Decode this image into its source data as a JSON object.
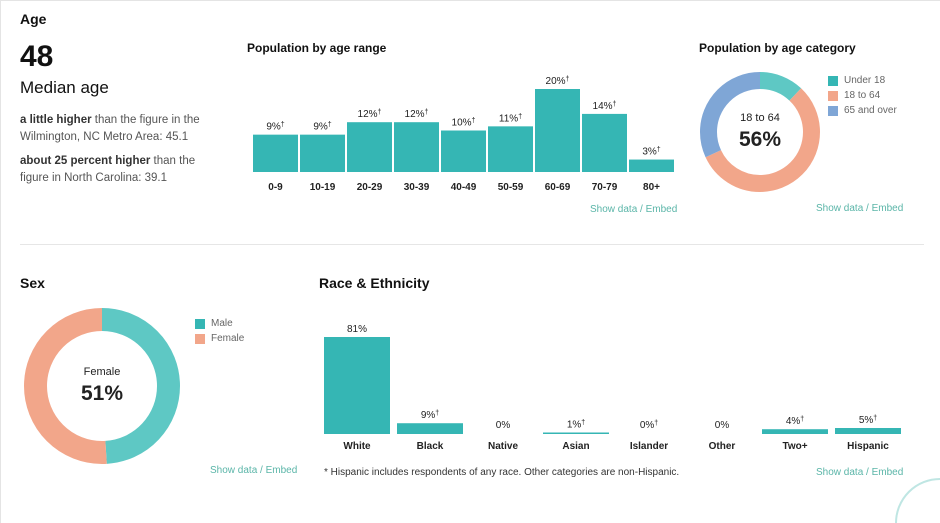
{
  "age": {
    "section_title": "Age",
    "median_value": "48",
    "median_label": "Median age",
    "comparisons": [
      {
        "bold": "a little higher",
        "rest": " than the figure in the Wilmington, NC Metro Area: 45.1"
      },
      {
        "bold": "about 25 percent higher",
        "rest": " than the figure in North Carolina: 39.1"
      }
    ]
  },
  "age_range": {
    "title": "Population by age range",
    "links": {
      "show": "Show data",
      "sep": "/",
      "embed": "Embed"
    }
  },
  "age_category": {
    "title": "Population by age category",
    "center_label": "18 to 64",
    "center_value": "56%",
    "legend": [
      "Under 18",
      "18 to 64",
      "65 and over"
    ],
    "links": {
      "show": "Show data",
      "sep": "/",
      "embed": "Embed"
    }
  },
  "sex": {
    "section_title": "Sex",
    "center_label": "Female",
    "center_value": "51%",
    "legend": [
      "Male",
      "Female"
    ],
    "links": {
      "show": "Show data",
      "sep": "/",
      "embed": "Embed"
    }
  },
  "race": {
    "section_title": "Race & Ethnicity",
    "footnote": "* Hispanic includes respondents of any race. Other categories are non-Hispanic.",
    "links": {
      "show": "Show data",
      "sep": "/",
      "embed": "Embed"
    }
  },
  "colors": {
    "teal": "#35b6b4",
    "teal_light": "#5ec8c4",
    "salmon": "#f2a68a",
    "blue": "#7fa6d6",
    "link": "#5ab5a8"
  },
  "chart_data": [
    {
      "id": "age_range",
      "type": "bar",
      "title": "Population by age range",
      "categories": [
        "0-9",
        "10-19",
        "20-29",
        "30-39",
        "40-49",
        "50-59",
        "60-69",
        "70-79",
        "80+"
      ],
      "values": [
        9,
        9,
        12,
        12,
        10,
        11,
        20,
        14,
        3
      ],
      "labels": [
        "9%†",
        "9%†",
        "12%†",
        "12%†",
        "10%†",
        "11%†",
        "20%†",
        "14%†",
        "3%†"
      ],
      "ylim": [
        0,
        20
      ]
    },
    {
      "id": "age_category",
      "type": "pie",
      "title": "Population by age category",
      "categories": [
        "Under 18",
        "18 to 64",
        "65 and over"
      ],
      "values": [
        12,
        56,
        32
      ]
    },
    {
      "id": "sex",
      "type": "pie",
      "title": "Sex",
      "categories": [
        "Male",
        "Female"
      ],
      "values": [
        49,
        51
      ]
    },
    {
      "id": "race",
      "type": "bar",
      "title": "Race & Ethnicity",
      "categories": [
        "White",
        "Black",
        "Native",
        "Asian",
        "Islander",
        "Other",
        "Two+",
        "Hispanic"
      ],
      "values": [
        81,
        9,
        0,
        1,
        0,
        0,
        4,
        5
      ],
      "labels": [
        "81%",
        "9%†",
        "0%",
        "1%†",
        "0%†",
        "0%",
        "4%†",
        "5%†"
      ],
      "ylim": [
        0,
        81
      ]
    }
  ]
}
